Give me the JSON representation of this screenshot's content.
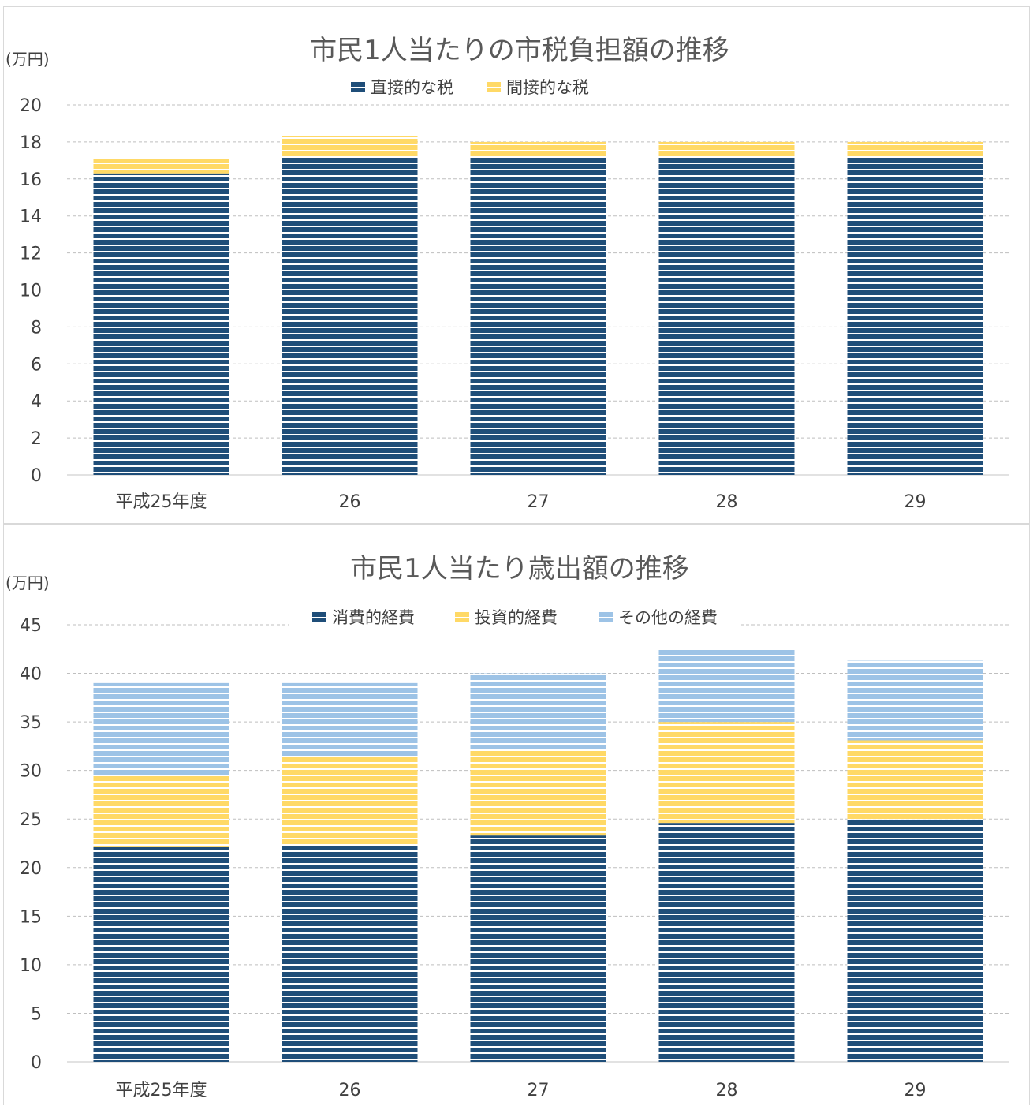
{
  "colors": {
    "navy": "#1f4e79",
    "yellow": "#ffd966",
    "lightblue": "#9dc3e6",
    "grid": "#bfbfbf",
    "axis": "#d9d9d9"
  },
  "chart_data": [
    {
      "type": "bar",
      "stacked": true,
      "title": "市民1人当たりの市税負担額の推移",
      "ylabel": "(万円)",
      "categories": [
        "平成25年度",
        "26",
        "27",
        "28",
        "29"
      ],
      "series": [
        {
          "name": "直接的な税",
          "color": "#1f4e79",
          "values": [
            16.3,
            17.2,
            17.2,
            17.2,
            17.2
          ]
        },
        {
          "name": "間接的な税",
          "color": "#ffd966",
          "values": [
            0.8,
            1.1,
            0.8,
            0.8,
            0.8
          ]
        }
      ],
      "ylim": [
        0,
        20
      ],
      "yticks": [
        0,
        2,
        4,
        6,
        8,
        10,
        12,
        14,
        16,
        18,
        20
      ],
      "grid": true,
      "legend_position": "top"
    },
    {
      "type": "bar",
      "stacked": true,
      "title": "市民1人当たり歳出額の推移",
      "ylabel": "(万円)",
      "categories": [
        "平成25年度",
        "26",
        "27",
        "28",
        "29"
      ],
      "series": [
        {
          "name": "消費的経費",
          "color": "#1f4e79",
          "values": [
            22.1,
            22.3,
            23.3,
            24.6,
            25.0
          ]
        },
        {
          "name": "投資的経費",
          "color": "#ffd966",
          "values": [
            7.4,
            9.1,
            8.8,
            10.4,
            8.1
          ]
        },
        {
          "name": "その他の経費",
          "color": "#9dc3e6",
          "values": [
            9.5,
            7.6,
            7.9,
            7.5,
            8.2
          ]
        }
      ],
      "ylim": [
        0,
        45
      ],
      "yticks": [
        0,
        5,
        10,
        15,
        20,
        25,
        30,
        35,
        40,
        45
      ],
      "grid": true,
      "legend_position": "top"
    }
  ]
}
